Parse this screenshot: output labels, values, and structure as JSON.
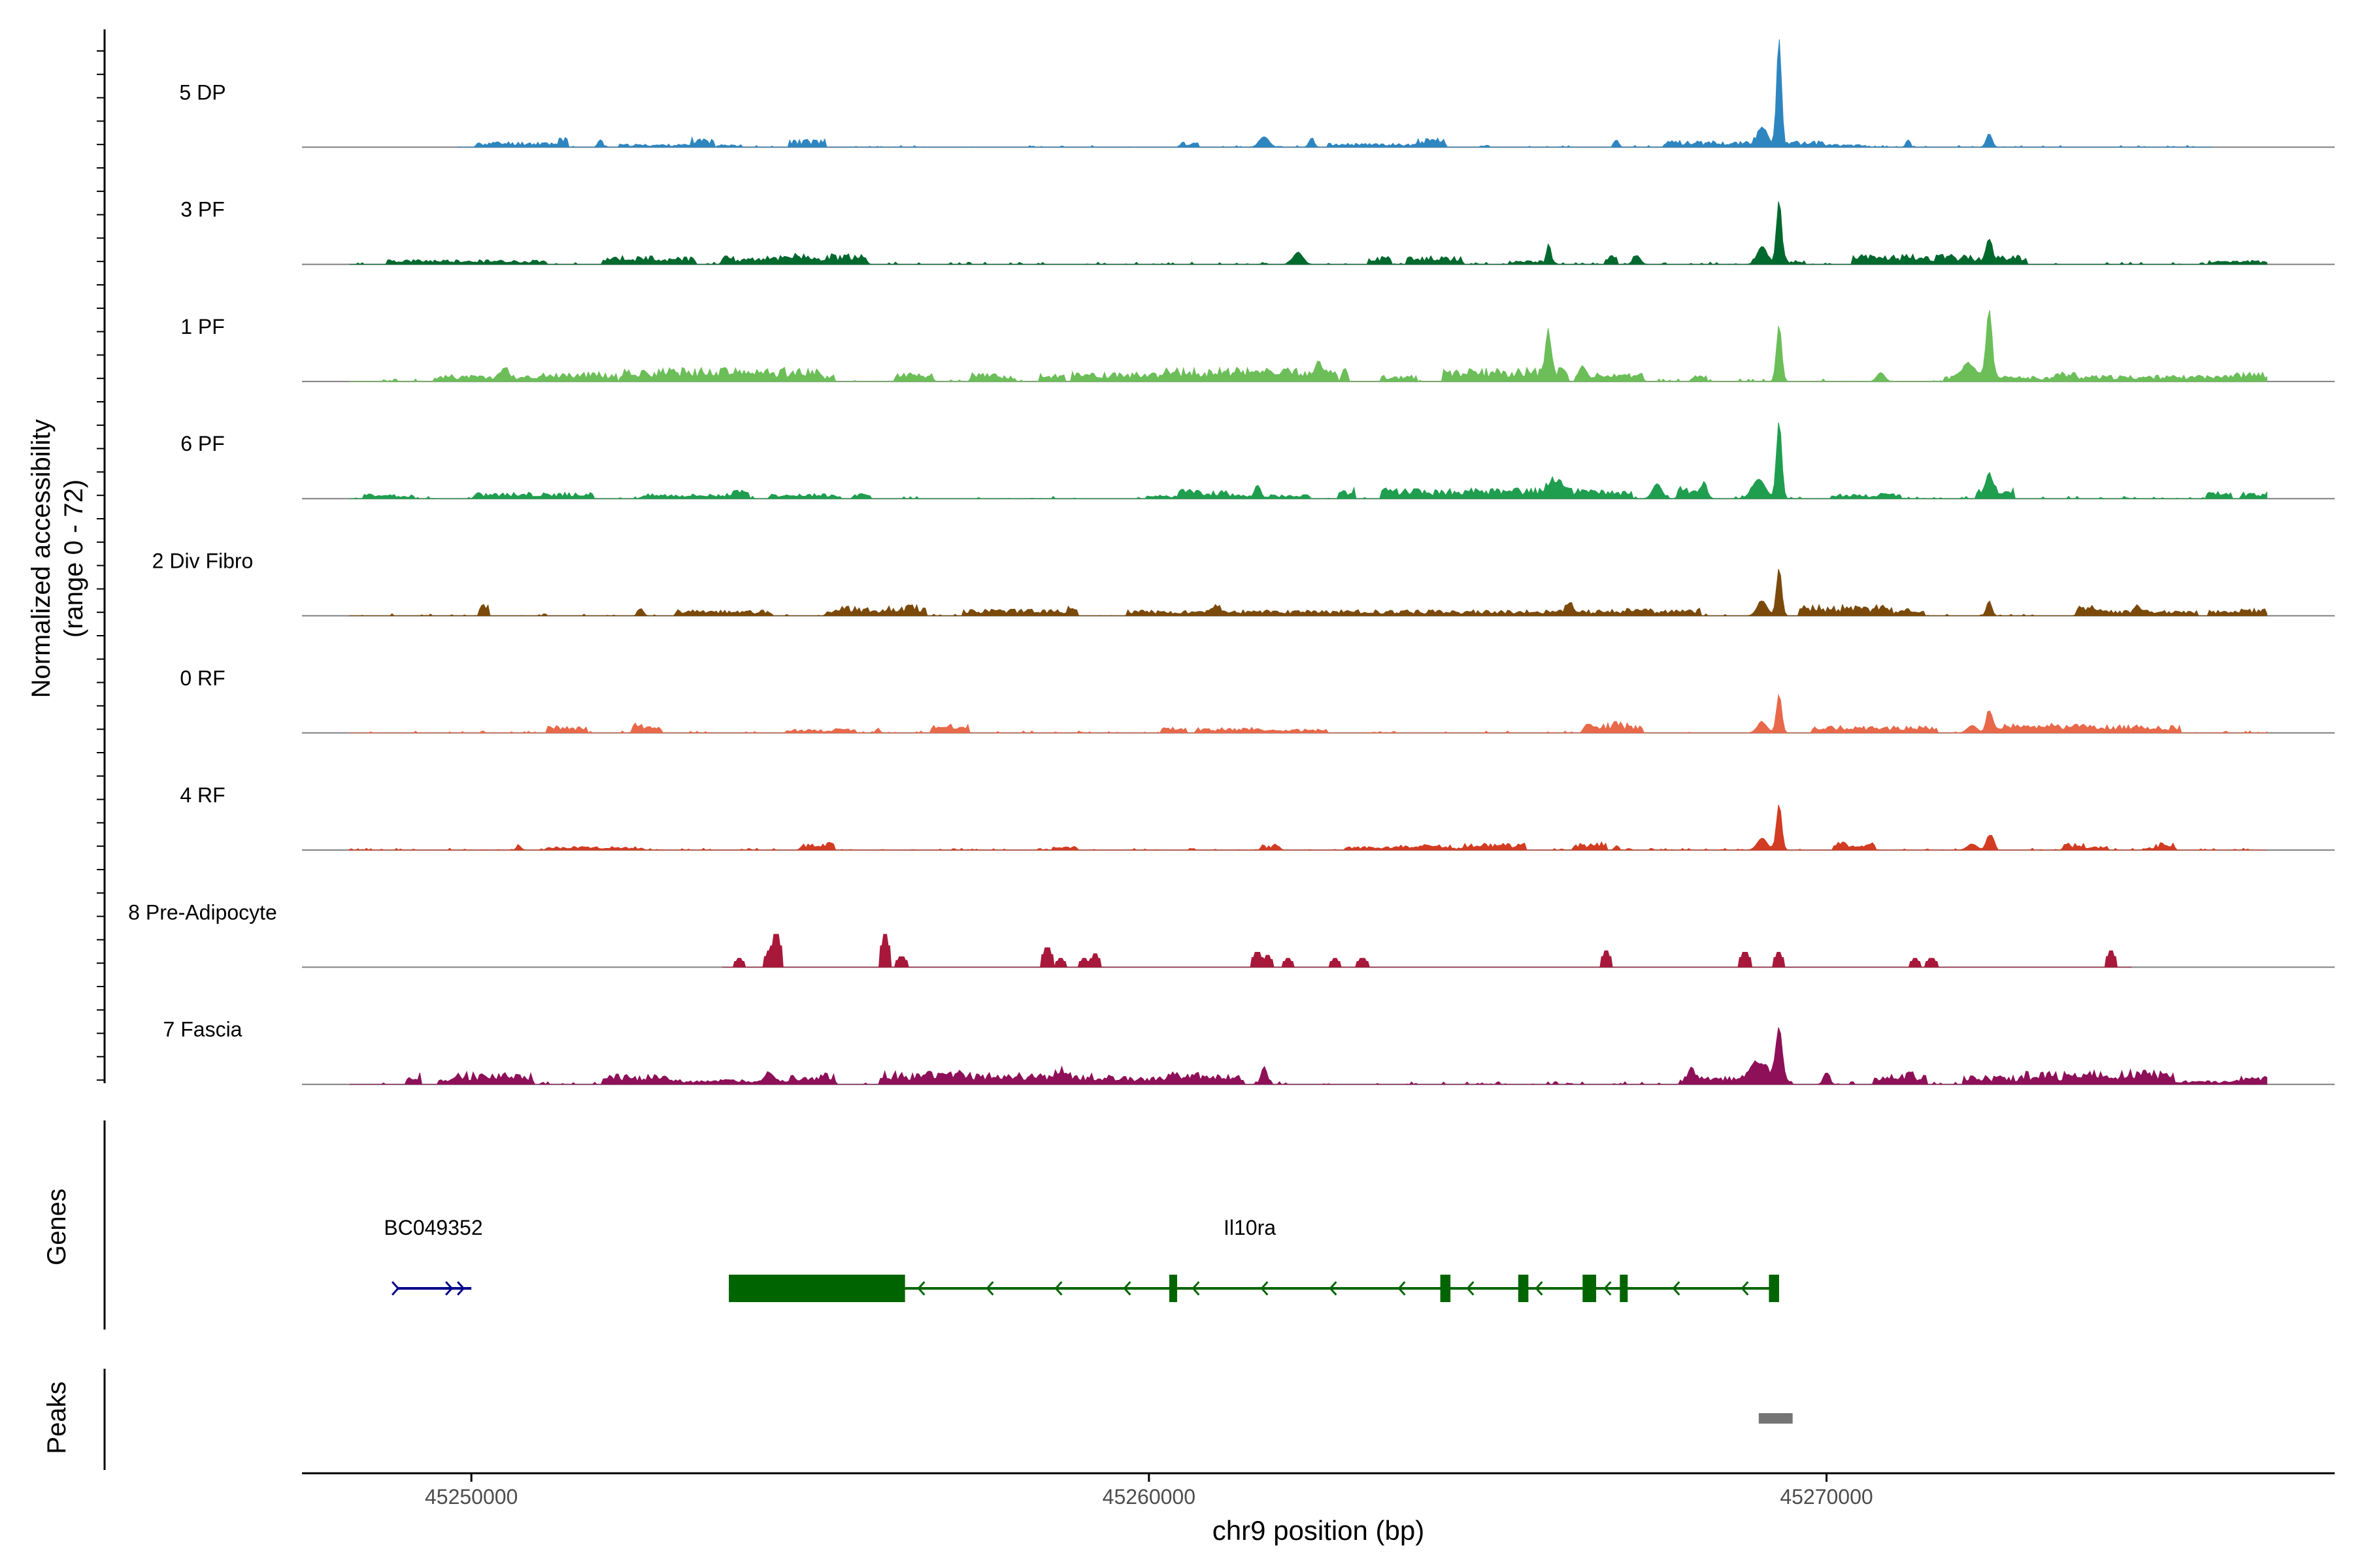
{
  "chart_data": {
    "type": "coverage",
    "title": "",
    "ylabel_line1": "Normalized accessibility",
    "ylabel_line2": "(range 0 - 72)",
    "ylim": [
      0,
      72
    ],
    "xlabel": "chr9 position (bp)",
    "xlim": [
      45247500,
      45277500
    ],
    "xticks": [
      45250000,
      45260000,
      45270000
    ],
    "xtick_labels": [
      "45250000",
      "45260000",
      "45270000"
    ],
    "genes_label": "Genes",
    "peaks_label": "Peaks",
    "tracks": [
      {
        "name": "5 DP",
        "color": "#2E86C1",
        "start": 45249800,
        "end": 45275700,
        "noise": 1.2,
        "density": 0.35,
        "seed": 11,
        "peaks": [
          [
            45269300,
            72,
            70
          ],
          [
            45269050,
            10,
            150
          ],
          [
            45272400,
            9,
            90
          ],
          [
            45261700,
            7,
            150
          ],
          [
            45262400,
            6,
            80
          ],
          [
            45251900,
            5,
            70
          ],
          [
            45266900,
            5,
            70
          ],
          [
            45271200,
            5,
            60
          ]
        ]
      },
      {
        "name": "3 PF",
        "color": "#00692E",
        "start": 45248200,
        "end": 45276500,
        "noise": 1.5,
        "density": 0.55,
        "seed": 23,
        "peaks": [
          [
            45269300,
            43,
            80
          ],
          [
            45269050,
            12,
            150
          ],
          [
            45265900,
            14,
            70
          ],
          [
            45262200,
            8,
            150
          ],
          [
            45272400,
            12,
            80
          ],
          [
            45267200,
            6,
            110
          ],
          [
            45255800,
            5,
            70
          ]
        ]
      },
      {
        "name": "1 PF",
        "color": "#6BBE58",
        "start": 45248200,
        "end": 45276500,
        "noise": 1.8,
        "density": 0.6,
        "seed": 37,
        "peaks": [
          [
            45265900,
            27,
            90
          ],
          [
            45269300,
            38,
            80
          ],
          [
            45272400,
            46,
            90
          ],
          [
            45272100,
            10,
            200
          ],
          [
            45262500,
            10,
            120
          ],
          [
            45250500,
            7,
            100
          ],
          [
            45266400,
            9,
            100
          ],
          [
            45270800,
            6,
            120
          ]
        ]
      },
      {
        "name": "6 PF",
        "color": "#1F9E4F",
        "start": 45248200,
        "end": 45276500,
        "noise": 1.6,
        "density": 0.55,
        "seed": 49,
        "peaks": [
          [
            45269300,
            52,
            80
          ],
          [
            45269000,
            13,
            200
          ],
          [
            45267500,
            10,
            140
          ],
          [
            45266000,
            8,
            200
          ],
          [
            45272400,
            13,
            90
          ],
          [
            45261600,
            8,
            80
          ],
          [
            45268200,
            7,
            100
          ]
        ]
      },
      {
        "name": "2 Div Fibro",
        "color": "#7B4A0B",
        "start": 45248200,
        "end": 45276500,
        "noise": 1.4,
        "density": 0.55,
        "seed": 61,
        "peaks": [
          [
            45269300,
            32,
            80
          ],
          [
            45269050,
            10,
            150
          ],
          [
            45272400,
            10,
            80
          ],
          [
            45266200,
            7,
            100
          ],
          [
            45252500,
            5,
            80
          ],
          [
            45261000,
            5,
            90
          ],
          [
            45274600,
            5,
            70
          ]
        ]
      },
      {
        "name": "0 RF",
        "color": "#E8684A",
        "start": 45248200,
        "end": 45276500,
        "noise": 1.3,
        "density": 0.5,
        "seed": 73,
        "peaks": [
          [
            45269300,
            26,
            80
          ],
          [
            45269050,
            7,
            150
          ],
          [
            45272400,
            15,
            90
          ],
          [
            45272150,
            5,
            150
          ],
          [
            45256000,
            3,
            60
          ],
          [
            45266900,
            3,
            70
          ]
        ]
      },
      {
        "name": "4 RF",
        "color": "#D33C22",
        "start": 45248200,
        "end": 45276500,
        "noise": 1.2,
        "density": 0.45,
        "seed": 89,
        "peaks": [
          [
            45269300,
            31,
            80
          ],
          [
            45269050,
            8,
            150
          ],
          [
            45272400,
            10,
            90
          ],
          [
            45272150,
            4,
            150
          ],
          [
            45250700,
            3,
            70
          ],
          [
            45261900,
            3,
            70
          ],
          [
            45266900,
            3,
            60
          ]
        ]
      },
      {
        "name": "8 Pre-Adipocyte",
        "color": "#A8183A",
        "start": 45253700,
        "end": 45274500,
        "noise": 0,
        "density": 0,
        "seed": 97,
        "blocks": [
          [
            45253950,
            6
          ],
          [
            45254400,
            11
          ],
          [
            45254500,
            22
          ],
          [
            45256100,
            22
          ],
          [
            45256350,
            7
          ],
          [
            45258500,
            13
          ],
          [
            45258700,
            6
          ],
          [
            45259050,
            6
          ],
          [
            45259200,
            9
          ],
          [
            45261600,
            10
          ],
          [
            45261750,
            8
          ],
          [
            45262050,
            6
          ],
          [
            45262750,
            6
          ],
          [
            45263150,
            6
          ],
          [
            45266750,
            11
          ],
          [
            45268800,
            10
          ],
          [
            45269300,
            10
          ],
          [
            45271300,
            6
          ],
          [
            45271550,
            6
          ],
          [
            45274200,
            11
          ]
        ]
      },
      {
        "name": "7 Fascia",
        "color": "#8E1058",
        "start": 45248200,
        "end": 45276500,
        "noise": 1.8,
        "density": 0.6,
        "seed": 103,
        "peaks": [
          [
            45269300,
            36,
            100
          ],
          [
            45269000,
            12,
            250
          ],
          [
            45261700,
            12,
            90
          ],
          [
            45268000,
            8,
            90
          ],
          [
            45270000,
            8,
            90
          ],
          [
            45254400,
            6,
            150
          ],
          [
            45258700,
            5,
            120
          ]
        ]
      }
    ],
    "genes": [
      {
        "name": "BC049352",
        "strand": "+",
        "color": "#00008B",
        "start": 45248900,
        "end": 45250000,
        "exons": []
      },
      {
        "name": "Il10ra",
        "strand": "-",
        "color": "#006400",
        "start": 45253800,
        "end": 45269300,
        "exons": [
          [
            45253800,
            45256400,
            "thick"
          ],
          [
            45260300,
            45260400,
            "thin"
          ],
          [
            45264300,
            45264450,
            "thin"
          ],
          [
            45265450,
            45265600,
            "thin"
          ],
          [
            45266400,
            45266600,
            "thin"
          ],
          [
            45266950,
            45267050,
            "thin"
          ],
          [
            45269150,
            45269300,
            "thin"
          ]
        ]
      }
    ],
    "peaks": [
      {
        "start": 45269000,
        "end": 45269500,
        "color": "#757575"
      }
    ]
  }
}
